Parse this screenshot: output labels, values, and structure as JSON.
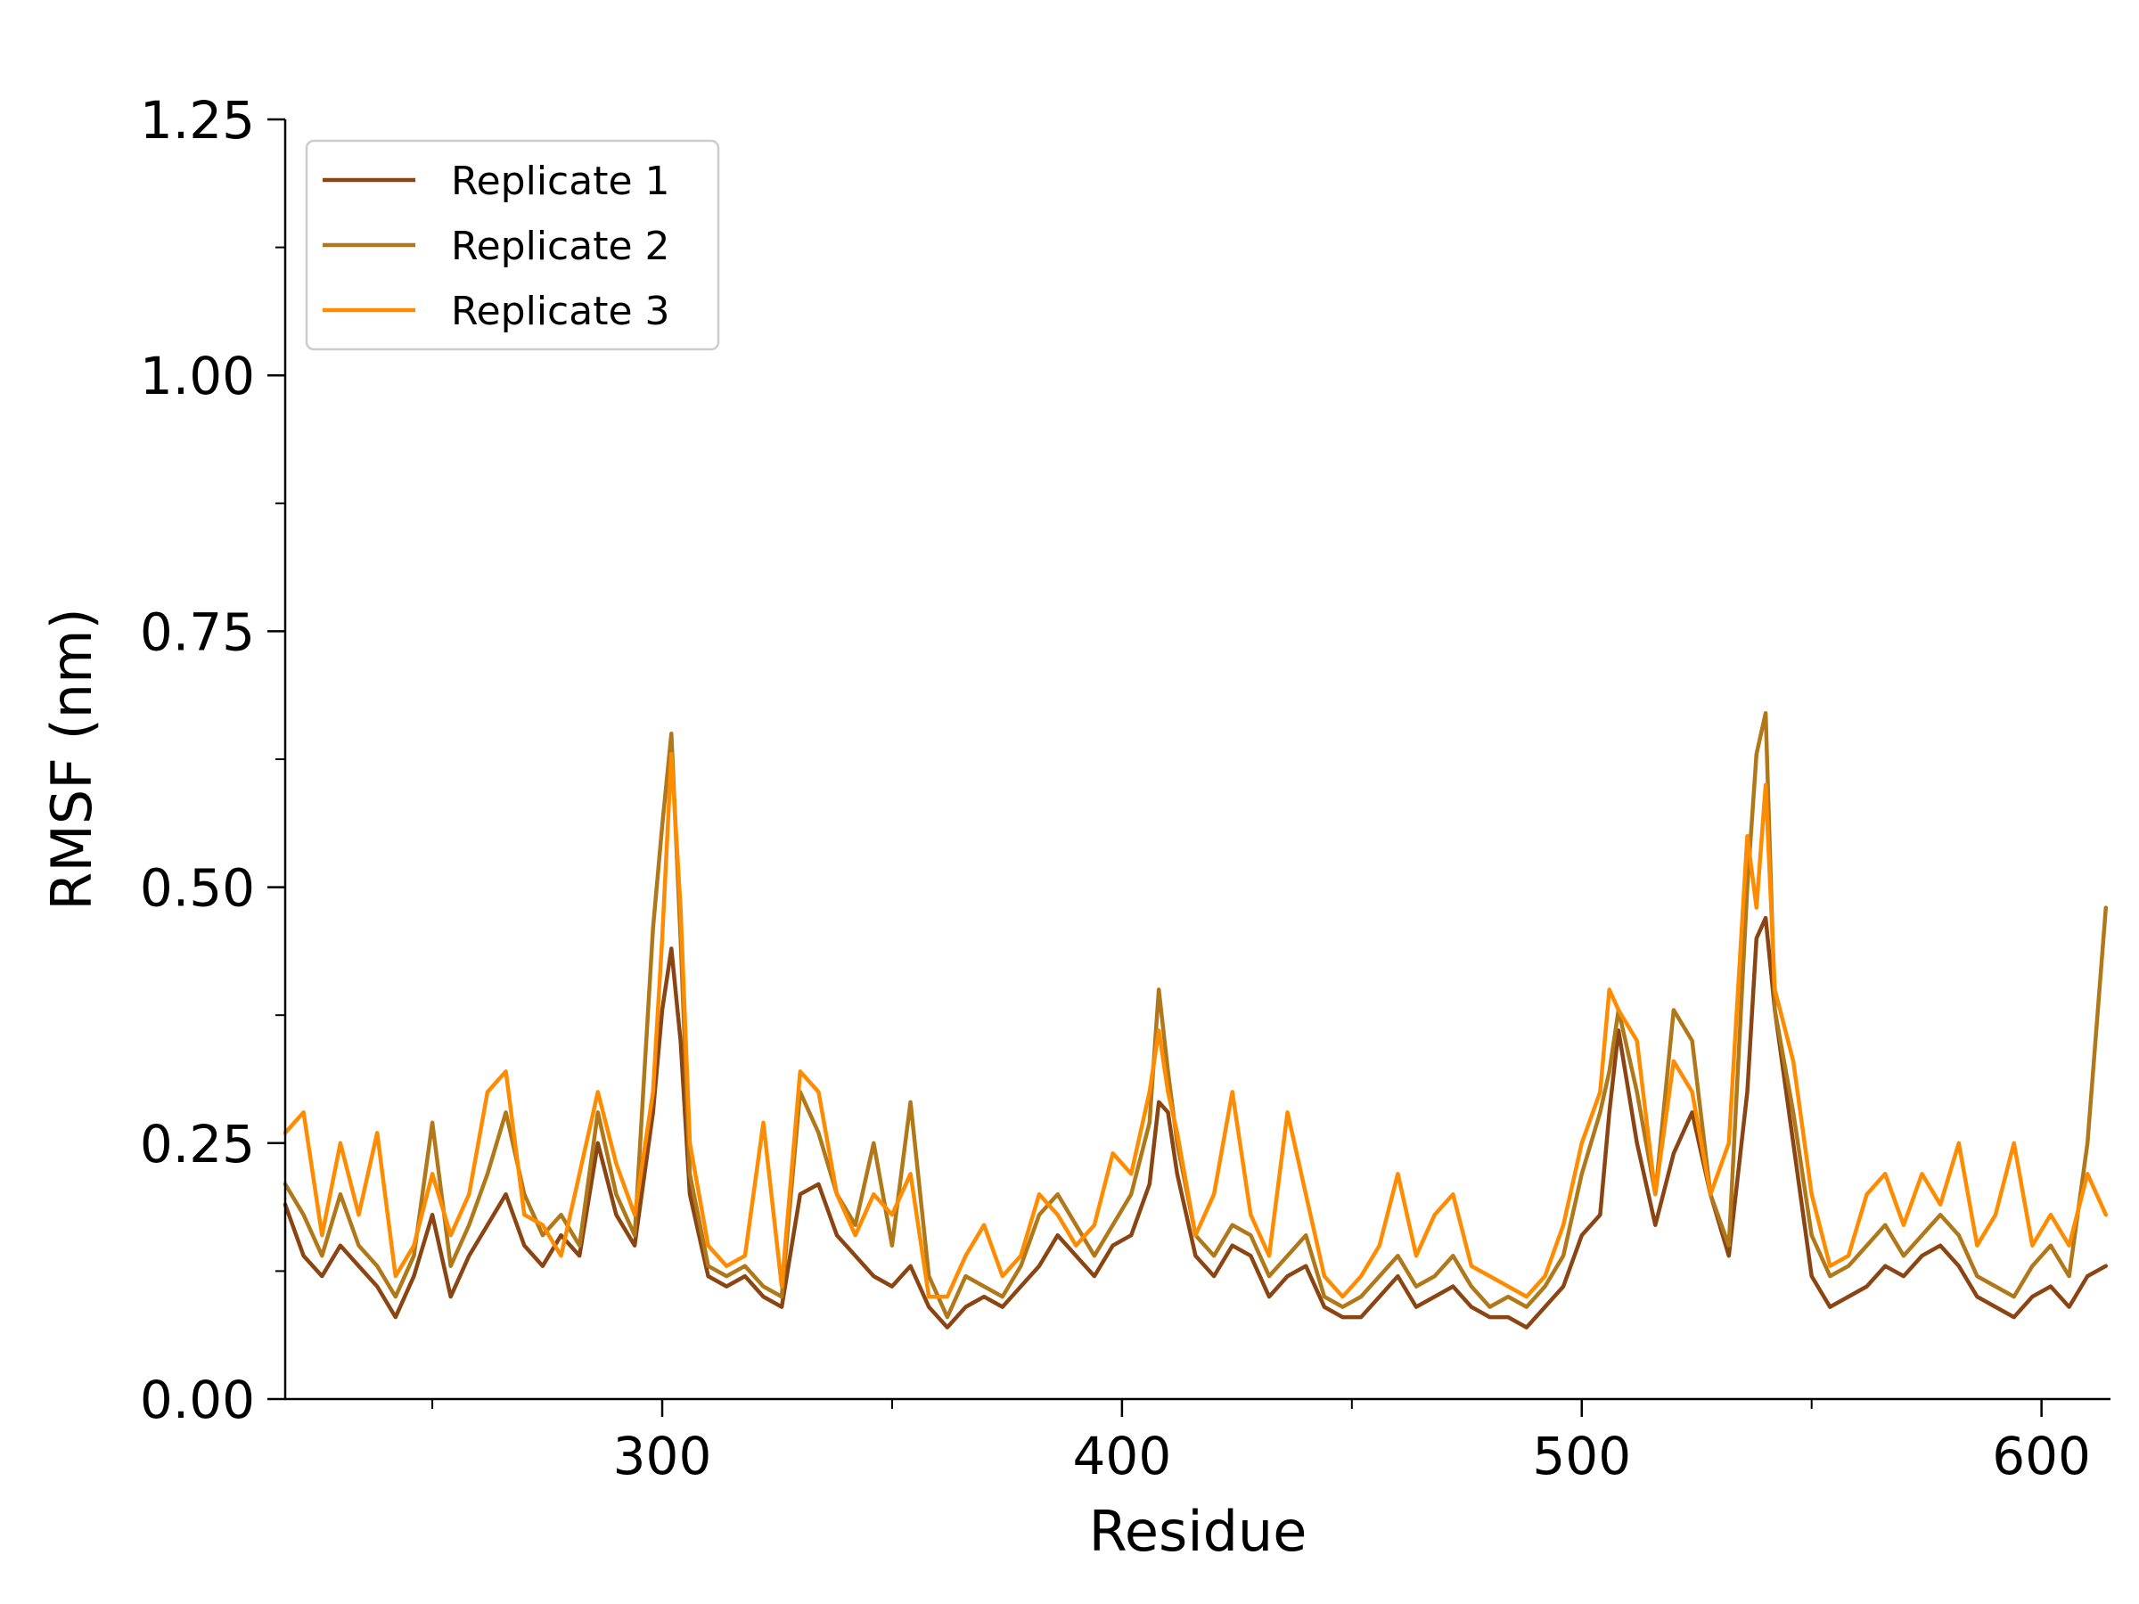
{
  "chart_data": {
    "type": "line",
    "title": "",
    "xlabel": "Residue",
    "ylabel": "RMSF (nm)",
    "xlim": [
      218,
      615
    ],
    "ylim": [
      0,
      1.25
    ],
    "x_ticks": [
      300,
      400,
      500,
      600
    ],
    "x_minor_ticks": [
      250,
      350,
      450,
      550
    ],
    "y_ticks": [
      0.0,
      0.25,
      0.5,
      0.75,
      1.0,
      1.25
    ],
    "y_tick_labels": [
      "0.00",
      "0.25",
      "0.50",
      "0.75",
      "1.00",
      "1.25"
    ],
    "y_minor_ticks": [
      0.125,
      0.375,
      0.625,
      0.875,
      1.125
    ],
    "grid": false,
    "legend_position": "top-left",
    "series": [
      {
        "name": "Replicate 1",
        "color": "#8B4513",
        "x": [
          218,
          222,
          226,
          230,
          234,
          238,
          242,
          246,
          250,
          254,
          258,
          262,
          266,
          270,
          274,
          278,
          282,
          286,
          290,
          294,
          298,
          300,
          302,
          304,
          306,
          310,
          314,
          318,
          322,
          326,
          330,
          334,
          338,
          342,
          346,
          350,
          354,
          358,
          362,
          366,
          370,
          374,
          378,
          382,
          386,
          390,
          394,
          398,
          402,
          406,
          408,
          410,
          412,
          416,
          420,
          424,
          428,
          432,
          436,
          440,
          444,
          448,
          452,
          456,
          460,
          464,
          468,
          472,
          476,
          480,
          484,
          488,
          492,
          496,
          500,
          504,
          506,
          508,
          512,
          516,
          520,
          524,
          528,
          532,
          536,
          538,
          540,
          542,
          546,
          550,
          554,
          558,
          562,
          566,
          570,
          574,
          578,
          582,
          586,
          590,
          594,
          598,
          602,
          606,
          610,
          614
        ],
        "y": [
          0.19,
          0.14,
          0.12,
          0.15,
          0.13,
          0.11,
          0.08,
          0.12,
          0.18,
          0.1,
          0.14,
          0.17,
          0.2,
          0.15,
          0.13,
          0.16,
          0.14,
          0.25,
          0.18,
          0.15,
          0.28,
          0.38,
          0.44,
          0.35,
          0.2,
          0.12,
          0.11,
          0.12,
          0.1,
          0.09,
          0.2,
          0.21,
          0.16,
          0.14,
          0.12,
          0.11,
          0.13,
          0.09,
          0.07,
          0.09,
          0.1,
          0.09,
          0.11,
          0.13,
          0.16,
          0.14,
          0.12,
          0.15,
          0.16,
          0.21,
          0.29,
          0.28,
          0.22,
          0.14,
          0.12,
          0.15,
          0.14,
          0.1,
          0.12,
          0.13,
          0.09,
          0.08,
          0.08,
          0.1,
          0.12,
          0.09,
          0.1,
          0.11,
          0.09,
          0.08,
          0.08,
          0.07,
          0.09,
          0.11,
          0.16,
          0.18,
          0.28,
          0.36,
          0.25,
          0.17,
          0.24,
          0.28,
          0.2,
          0.14,
          0.3,
          0.45,
          0.47,
          0.38,
          0.25,
          0.12,
          0.09,
          0.1,
          0.11,
          0.13,
          0.12,
          0.14,
          0.15,
          0.13,
          0.1,
          0.09,
          0.08,
          0.1,
          0.11,
          0.09,
          0.12,
          0.13
        ]
      },
      {
        "name": "Replicate 2",
        "color": "#B07819",
        "x": [
          218,
          222,
          226,
          230,
          234,
          238,
          242,
          246,
          250,
          254,
          258,
          262,
          266,
          270,
          274,
          278,
          282,
          286,
          290,
          294,
          298,
          300,
          302,
          304,
          306,
          310,
          314,
          318,
          322,
          326,
          330,
          334,
          338,
          342,
          346,
          350,
          354,
          358,
          362,
          366,
          370,
          374,
          378,
          382,
          386,
          390,
          394,
          398,
          402,
          406,
          408,
          410,
          412,
          416,
          420,
          424,
          428,
          432,
          436,
          440,
          444,
          448,
          452,
          456,
          460,
          464,
          468,
          472,
          476,
          480,
          484,
          488,
          492,
          496,
          500,
          504,
          506,
          508,
          512,
          516,
          520,
          524,
          528,
          532,
          536,
          538,
          540,
          542,
          546,
          550,
          554,
          558,
          562,
          566,
          570,
          574,
          578,
          582,
          586,
          590,
          594,
          598,
          602,
          606,
          610,
          614
        ],
        "y": [
          0.21,
          0.18,
          0.14,
          0.2,
          0.15,
          0.13,
          0.1,
          0.14,
          0.27,
          0.13,
          0.17,
          0.22,
          0.28,
          0.2,
          0.16,
          0.18,
          0.15,
          0.28,
          0.2,
          0.16,
          0.46,
          0.56,
          0.65,
          0.45,
          0.22,
          0.13,
          0.12,
          0.13,
          0.11,
          0.1,
          0.3,
          0.26,
          0.2,
          0.17,
          0.25,
          0.15,
          0.29,
          0.12,
          0.08,
          0.12,
          0.11,
          0.1,
          0.13,
          0.18,
          0.2,
          0.17,
          0.14,
          0.17,
          0.2,
          0.27,
          0.4,
          0.32,
          0.25,
          0.16,
          0.14,
          0.17,
          0.16,
          0.12,
          0.14,
          0.16,
          0.1,
          0.09,
          0.1,
          0.12,
          0.14,
          0.11,
          0.12,
          0.14,
          0.11,
          0.09,
          0.1,
          0.09,
          0.11,
          0.14,
          0.22,
          0.28,
          0.32,
          0.38,
          0.3,
          0.2,
          0.38,
          0.35,
          0.2,
          0.15,
          0.5,
          0.63,
          0.67,
          0.38,
          0.28,
          0.16,
          0.12,
          0.13,
          0.15,
          0.17,
          0.14,
          0.16,
          0.18,
          0.16,
          0.12,
          0.11,
          0.1,
          0.13,
          0.15,
          0.12,
          0.25,
          0.48
        ]
      },
      {
        "name": "Replicate 3",
        "color": "#FF8C00",
        "x": [
          218,
          222,
          226,
          230,
          234,
          238,
          242,
          246,
          250,
          254,
          258,
          262,
          266,
          270,
          274,
          278,
          282,
          286,
          290,
          294,
          298,
          300,
          302,
          304,
          306,
          310,
          314,
          318,
          322,
          326,
          330,
          334,
          338,
          342,
          346,
          350,
          354,
          358,
          362,
          366,
          370,
          374,
          378,
          382,
          386,
          390,
          394,
          398,
          402,
          406,
          408,
          410,
          412,
          416,
          420,
          424,
          428,
          432,
          436,
          440,
          444,
          448,
          452,
          456,
          460,
          464,
          468,
          472,
          476,
          480,
          484,
          488,
          492,
          496,
          500,
          504,
          506,
          508,
          512,
          516,
          520,
          524,
          528,
          532,
          536,
          538,
          540,
          542,
          546,
          550,
          554,
          558,
          562,
          566,
          570,
          574,
          578,
          582,
          586,
          590,
          594,
          598,
          602,
          606,
          610,
          614
        ],
        "y": [
          0.26,
          0.28,
          0.16,
          0.25,
          0.18,
          0.26,
          0.12,
          0.15,
          0.22,
          0.16,
          0.2,
          0.3,
          0.32,
          0.18,
          0.17,
          0.14,
          0.22,
          0.3,
          0.23,
          0.18,
          0.3,
          0.45,
          0.63,
          0.48,
          0.25,
          0.15,
          0.13,
          0.14,
          0.27,
          0.11,
          0.32,
          0.3,
          0.2,
          0.16,
          0.2,
          0.18,
          0.22,
          0.1,
          0.1,
          0.14,
          0.17,
          0.12,
          0.14,
          0.2,
          0.18,
          0.15,
          0.17,
          0.24,
          0.22,
          0.3,
          0.36,
          0.3,
          0.26,
          0.16,
          0.2,
          0.3,
          0.18,
          0.14,
          0.28,
          0.2,
          0.12,
          0.1,
          0.12,
          0.15,
          0.22,
          0.14,
          0.18,
          0.2,
          0.13,
          0.12,
          0.11,
          0.1,
          0.12,
          0.17,
          0.25,
          0.3,
          0.4,
          0.38,
          0.35,
          0.2,
          0.33,
          0.3,
          0.2,
          0.25,
          0.55,
          0.48,
          0.6,
          0.4,
          0.33,
          0.2,
          0.13,
          0.14,
          0.2,
          0.22,
          0.17,
          0.22,
          0.19,
          0.25,
          0.15,
          0.18,
          0.25,
          0.15,
          0.18,
          0.15,
          0.22,
          0.18
        ]
      }
    ]
  }
}
